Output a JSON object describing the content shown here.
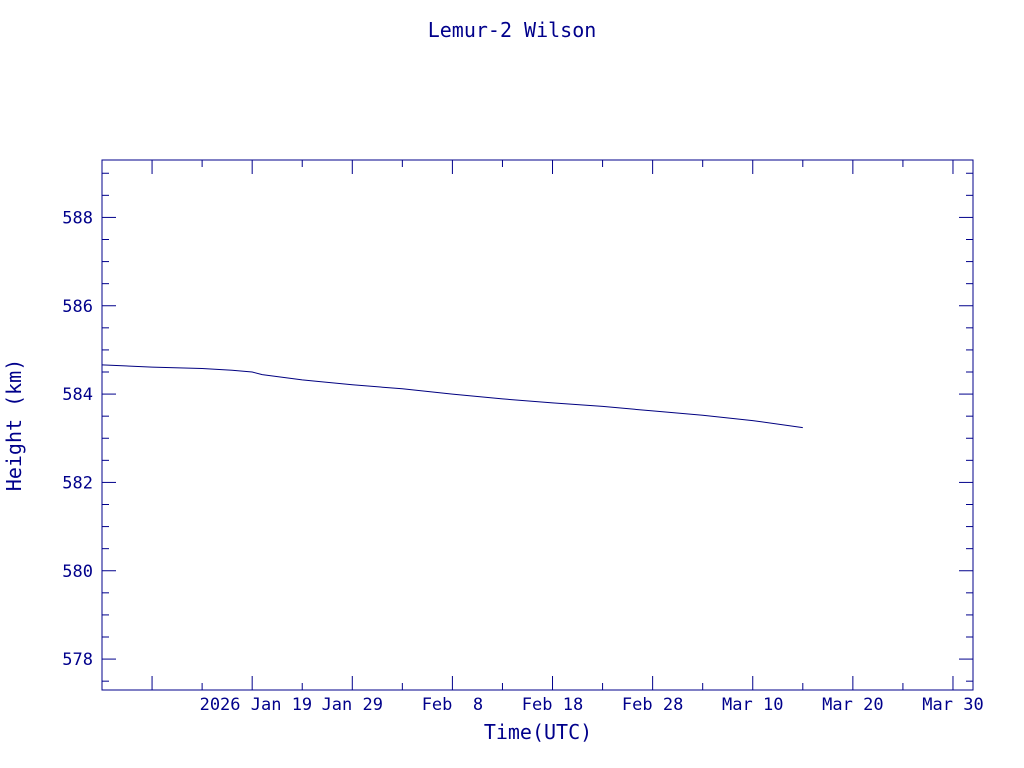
{
  "chart_data": {
    "type": "line",
    "title": "Lemur-2 Wilson",
    "xlabel": "Time(UTC)",
    "ylabel": "Height (km)",
    "x_unit": "date",
    "xlim": [
      "2026-01-04",
      "2026-04-01"
    ],
    "ylim": [
      577.3,
      589.3
    ],
    "xticks": [
      {
        "date": "2026-01-19",
        "label": "2026 Jan 19"
      },
      {
        "date": "2026-01-29",
        "label": "Jan 29"
      },
      {
        "date": "2026-02-08",
        "label": "Feb  8"
      },
      {
        "date": "2026-02-18",
        "label": "Feb 18"
      },
      {
        "date": "2026-02-28",
        "label": "Feb 28"
      },
      {
        "date": "2026-03-10",
        "label": "Mar 10"
      },
      {
        "date": "2026-03-20",
        "label": "Mar 20"
      },
      {
        "date": "2026-03-30",
        "label": "Mar 30"
      }
    ],
    "yticks": [
      578,
      580,
      582,
      584,
      586,
      588
    ],
    "grid": false,
    "series": [
      {
        "x": [
          "2026-01-04",
          "2026-01-09",
          "2026-01-14",
          "2026-01-17",
          "2026-01-19",
          "2026-01-20",
          "2026-01-24",
          "2026-01-29",
          "2026-02-03",
          "2026-02-08",
          "2026-02-13",
          "2026-02-18",
          "2026-02-23",
          "2026-02-28",
          "2026-03-05",
          "2026-03-10",
          "2026-03-15"
        ],
        "y": [
          584.66,
          584.61,
          584.58,
          584.54,
          584.5,
          584.44,
          584.32,
          584.21,
          584.12,
          584.0,
          583.89,
          583.8,
          583.72,
          583.62,
          583.52,
          583.4,
          583.24
        ],
        "color": "#000080"
      }
    ]
  }
}
